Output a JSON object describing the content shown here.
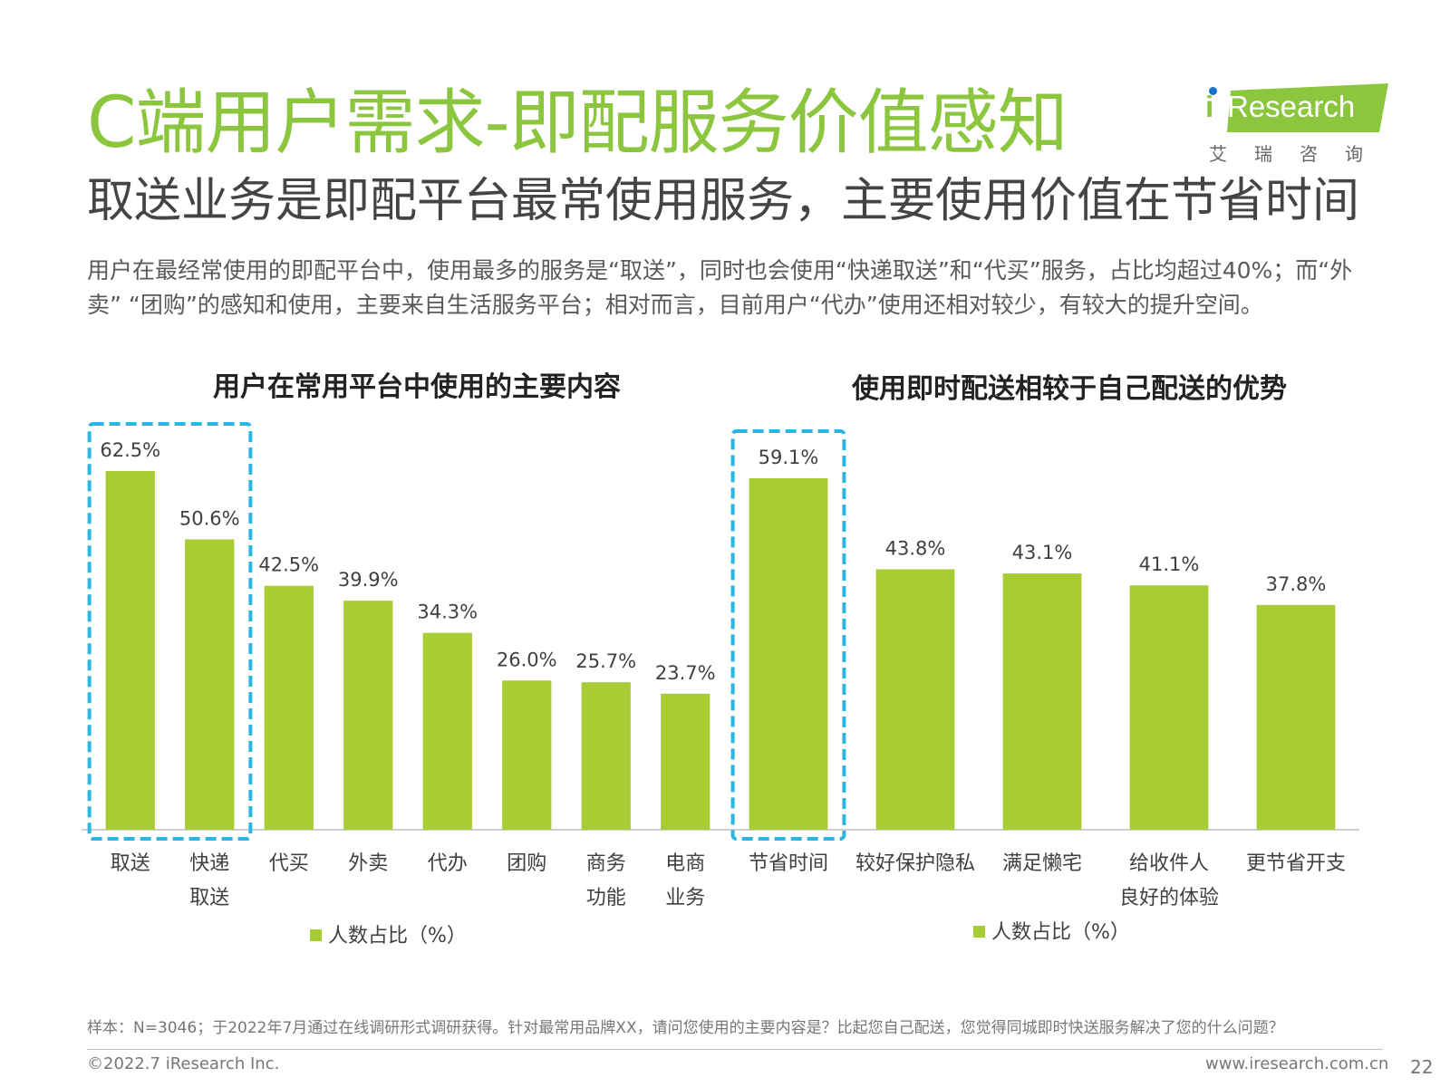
{
  "title": "C端用户需求-即配服务价值感知",
  "subtitle": "取送业务是即配平台最常使用服务，主要使用价值在节省时间",
  "description": "用户在最经常使用的即配平台中，使用最多的服务是“取送”，同时也会使用“快递取送”和“代买”服务，占比均超过40%；而“外卖” “团购”的感知和使用，主要来自生活服务平台；相对而言，目前用户“代办”使用还相对较少，有较大的提升空间。",
  "logo": {
    "text": "Research",
    "prefix": "i",
    "cn": "艾瑞咨询"
  },
  "colors": {
    "title": "#8cc63e",
    "bar": "#a8cc33",
    "highlight": "#29b6e0",
    "axis": "#bfbfbf"
  },
  "chart_data": [
    {
      "type": "bar",
      "title": "用户在常用平台中使用的主要内容",
      "categories": [
        [
          "取送"
        ],
        [
          "快递",
          "取送"
        ],
        [
          "代买"
        ],
        [
          "外卖"
        ],
        [
          "代办"
        ],
        [
          "团购"
        ],
        [
          "商务",
          "功能"
        ],
        [
          "电商",
          "业务"
        ]
      ],
      "series": [
        {
          "name": "人数占比（%）",
          "values": [
            62.5,
            50.6,
            42.5,
            39.9,
            34.3,
            26.0,
            25.7,
            23.7
          ]
        }
      ],
      "value_labels": [
        "62.5%",
        "50.6%",
        "42.5%",
        "39.9%",
        "34.3%",
        "26.0%",
        "25.7%",
        "23.7%"
      ],
      "highlight": [
        0,
        1
      ],
      "legend": "bottom"
    },
    {
      "type": "bar",
      "title": "使用即时配送相较于自己配送的优势",
      "categories": [
        [
          "节省时间"
        ],
        [
          "较好保护隐私"
        ],
        [
          "满足懒宅"
        ],
        [
          "给收件人",
          "良好的体验"
        ],
        [
          "更节省开支"
        ]
      ],
      "series": [
        {
          "name": "人数占比（%）",
          "values": [
            59.1,
            43.8,
            43.1,
            41.1,
            37.8
          ]
        }
      ],
      "value_labels": [
        "59.1%",
        "43.8%",
        "43.1%",
        "41.1%",
        "37.8%"
      ],
      "highlight": [
        0
      ],
      "legend": "bottom"
    }
  ],
  "footer": {
    "note": "样本：N=3046；于2022年7月通过在线调研形式调研获得。针对最常用品牌XX，请问您使用的主要内容是？比起您自己配送，您觉得同城即时快送服务解决了您的什么问题？",
    "copyright": "©2022.7 iResearch Inc.",
    "website": "www.iresearch.com.cn",
    "page": "22"
  }
}
